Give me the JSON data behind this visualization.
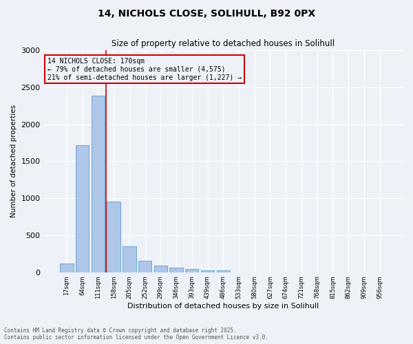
{
  "title_line1": "14, NICHOLS CLOSE, SOLIHULL, B92 0PX",
  "title_line2": "Size of property relative to detached houses in Solihull",
  "xlabel": "Distribution of detached houses by size in Solihull",
  "ylabel": "Number of detached properties",
  "bar_values": [
    120,
    1720,
    2390,
    950,
    350,
    150,
    90,
    60,
    40,
    25,
    20,
    0,
    0,
    0,
    0,
    0,
    0,
    0,
    0,
    0,
    0
  ],
  "categories": [
    "17sqm",
    "64sqm",
    "111sqm",
    "158sqm",
    "205sqm",
    "252sqm",
    "299sqm",
    "346sqm",
    "393sqm",
    "439sqm",
    "486sqm",
    "533sqm",
    "580sqm",
    "627sqm",
    "674sqm",
    "721sqm",
    "768sqm",
    "815sqm",
    "862sqm",
    "909sqm",
    "956sqm"
  ],
  "bar_color": "#aec6e8",
  "bar_edge_color": "#5a9fd4",
  "vline_color": "#cc0000",
  "annotation_text": "14 NICHOLS CLOSE: 170sqm\n← 79% of detached houses are smaller (4,575)\n21% of semi-detached houses are larger (1,227) →",
  "annotation_box_color": "#cc0000",
  "ylim": [
    0,
    3000
  ],
  "yticks": [
    0,
    500,
    1000,
    1500,
    2000,
    2500,
    3000
  ],
  "background_color": "#eef2f8",
  "grid_color": "#ffffff",
  "footer_line1": "Contains HM Land Registry data © Crown copyright and database right 2025.",
  "footer_line2": "Contains public sector information licensed under the Open Government Licence v3.0."
}
